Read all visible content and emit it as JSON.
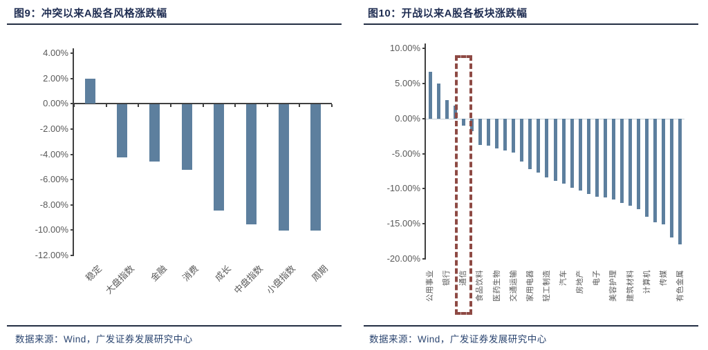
{
  "panels": [
    {
      "title": "图9：冲突以来A股各风格涨跌幅",
      "source": "数据来源：Wind，广发证券发展研究中心"
    },
    {
      "title": "图10：开战以来A股各板块涨跌幅",
      "source": "数据来源：Wind，广发证券发展研究中心"
    }
  ],
  "colors": {
    "bar": "#5d7f9e",
    "title": "#1f2d52",
    "source_text": "#2b4570",
    "axis": "#3f3f3f",
    "tick_label": "#595959",
    "zero_line_light": "#c3cdd6",
    "highlight_box": "#8e4a44",
    "rule": "#222d42"
  },
  "chart_data": [
    {
      "type": "bar",
      "title": "图9：冲突以来A股各风格涨跌幅",
      "categories": [
        "稳定",
        "大盘指数",
        "金融",
        "消费",
        "成长",
        "中盘指数",
        "小盘指数",
        "周期"
      ],
      "values": [
        2.0,
        -4.2,
        -4.5,
        -5.2,
        -8.4,
        -9.5,
        -10.0,
        -10.0
      ],
      "unit": "%",
      "ylim": [
        -12,
        4
      ],
      "ytick_step": 2,
      "ytick_format": "0.00%",
      "xlabel_rotation": -45,
      "grid": false,
      "legend": false
    },
    {
      "type": "bar",
      "title": "图10：开战以来A股各板块涨跌幅",
      "categories": [
        "公用事业",
        "",
        "银行",
        "",
        "通信",
        "",
        "食品饮料",
        "",
        "医药生物",
        "",
        "交通运输",
        "",
        "家用电器",
        "",
        "轻工制造",
        "",
        "汽车",
        "",
        "房地产",
        "",
        "电子",
        "",
        "美容护理",
        "",
        "建筑材料",
        "",
        "计算机",
        "",
        "传媒",
        "",
        "有色金属"
      ],
      "values": [
        6.7,
        5.0,
        2.6,
        1.8,
        -1.0,
        -1.8,
        -3.8,
        -3.9,
        -4.3,
        -4.6,
        -4.9,
        -6.1,
        -7.2,
        -7.7,
        -8.4,
        -8.9,
        -9.3,
        -9.9,
        -10.3,
        -10.8,
        -11.1,
        -11.2,
        -11.5,
        -12.0,
        -12.4,
        -12.9,
        -14.0,
        -14.8,
        -15.1,
        -17.0,
        -17.9
      ],
      "unit": "%",
      "ylim": [
        -20,
        10
      ],
      "ytick_step": 5,
      "ytick_format": "0.00%",
      "xlabel_rotation": -90,
      "grid": false,
      "legend": false,
      "highlight": {
        "category": "通信",
        "style": "dashed-box"
      }
    }
  ]
}
